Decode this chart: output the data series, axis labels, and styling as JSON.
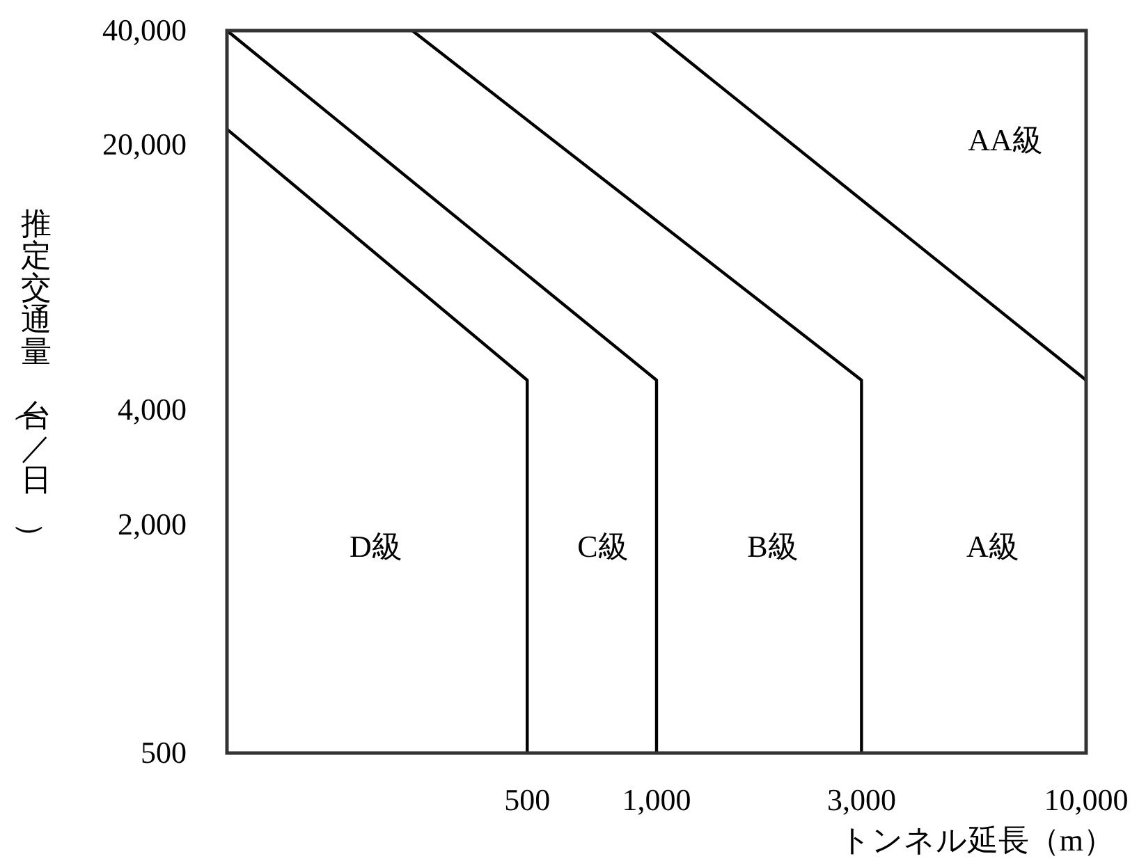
{
  "chart_data": {
    "type": "line",
    "xlabel": "トンネル延長（m）",
    "ylabel": "推定交通量（台／日）",
    "log": "xy",
    "xlim": [
      100,
      10000
    ],
    "ylim": [
      500,
      40000
    ],
    "xticks": [
      500,
      {
        "value": 1000,
        "label": "1,000"
      },
      {
        "value": 3000,
        "label": "3,000"
      },
      {
        "value": 10000,
        "label": "10,000"
      }
    ],
    "yticks": [
      500,
      {
        "value": 2000,
        "label": "2,000"
      },
      {
        "value": 4000,
        "label": "4,000"
      },
      {
        "value": 20000,
        "label": "20,000"
      },
      {
        "value": 40000,
        "label": "40,000"
      }
    ],
    "series": [
      {
        "color": "#000000",
        "x": [
          100,
          500,
          500
        ],
        "values": [
          22000,
          4800,
          500
        ]
      },
      {
        "color": "#000000",
        "x": [
          100,
          1000,
          1000
        ],
        "values": [
          40000,
          4800,
          500
        ]
      },
      {
        "color": "#000000",
        "x": [
          270,
          3000,
          3000
        ],
        "values": [
          40000,
          4800,
          500
        ]
      },
      {
        "color": "#000000",
        "x": [
          970,
          10000
        ],
        "values": [
          40000,
          4800
        ]
      }
    ],
    "annotations": [
      "D級",
      "C級",
      "B級",
      "A級",
      "AA級"
    ]
  }
}
